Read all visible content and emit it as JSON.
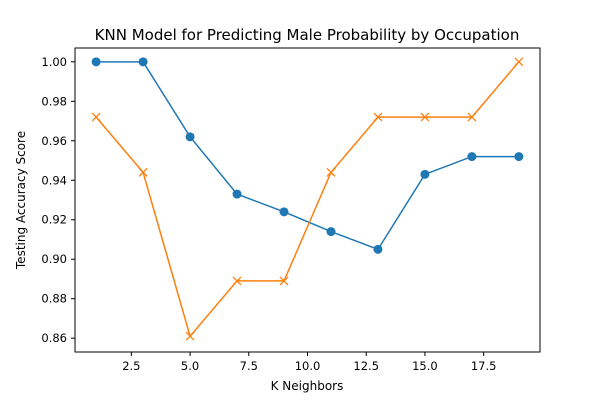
{
  "chart_data": {
    "type": "line",
    "title": "KNN Model for Predicting Male Probability by Occupation",
    "xlabel": "K Neighbors",
    "ylabel": "Testing Accuracy Score",
    "xlim": [
      0.1,
      19.9
    ],
    "ylim": [
      0.853,
      1.007
    ],
    "x_ticks": [
      2.5,
      5.0,
      7.5,
      10.0,
      12.5,
      15.0,
      17.5
    ],
    "x_tick_labels": [
      "2.5",
      "5.0",
      "7.5",
      "10.0",
      "12.5",
      "15.0",
      "17.5"
    ],
    "y_ticks": [
      0.86,
      0.88,
      0.9,
      0.92,
      0.94,
      0.96,
      0.98,
      1.0
    ],
    "y_tick_labels": [
      "0.86",
      "0.88",
      "0.90",
      "0.92",
      "0.94",
      "0.96",
      "0.98",
      "1.00"
    ],
    "grid": false,
    "legend": "none",
    "x": [
      1,
      3,
      5,
      7,
      9,
      11,
      13,
      15,
      17,
      19
    ],
    "series": [
      {
        "color": "#1f77b4",
        "marker": "circle",
        "values": [
          1.0,
          1.0,
          0.962,
          0.933,
          0.924,
          0.914,
          0.905,
          0.943,
          0.952,
          0.952
        ]
      },
      {
        "color": "#ff7f0e",
        "marker": "x",
        "values": [
          0.972,
          0.944,
          0.861,
          0.889,
          0.889,
          0.944,
          0.972,
          0.972,
          0.972,
          1.0
        ]
      }
    ]
  }
}
